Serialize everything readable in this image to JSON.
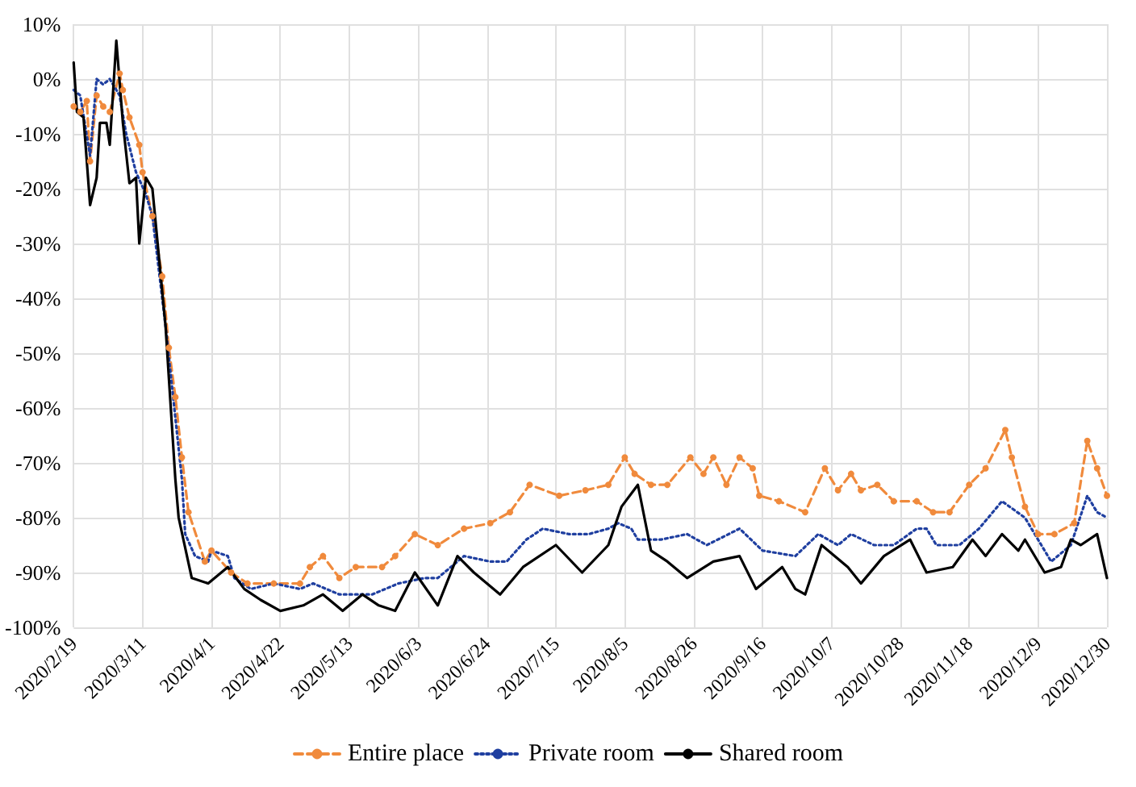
{
  "chart_data": {
    "type": "line",
    "xlim": [
      "2020-02-19",
      "2020-12-30"
    ],
    "xticks": [
      {
        "value": "2020-02-19",
        "label": "2020/2/19"
      },
      {
        "value": "2020-03-11",
        "label": "2020/3/11"
      },
      {
        "value": "2020-04-01",
        "label": "2020/4/1"
      },
      {
        "value": "2020-04-22",
        "label": "2020/4/22"
      },
      {
        "value": "2020-05-13",
        "label": "2020/5/13"
      },
      {
        "value": "2020-06-03",
        "label": "2020/6/3"
      },
      {
        "value": "2020-06-24",
        "label": "2020/6/24"
      },
      {
        "value": "2020-07-15",
        "label": "2020/7/15"
      },
      {
        "value": "2020-08-05",
        "label": "2020/8/5"
      },
      {
        "value": "2020-08-26",
        "label": "2020/8/26"
      },
      {
        "value": "2020-09-16",
        "label": "2020/9/16"
      },
      {
        "value": "2020-10-07",
        "label": "2020/10/7"
      },
      {
        "value": "2020-10-28",
        "label": "2020/10/28"
      },
      {
        "value": "2020-11-18",
        "label": "2020/11/18"
      },
      {
        "value": "2020-12-09",
        "label": "2020/12/9"
      },
      {
        "value": "2020-12-30",
        "label": "2020/12/30"
      }
    ],
    "ylim": [
      -100,
      10
    ],
    "yticks": [
      {
        "value": -100,
        "label": "-100%"
      },
      {
        "value": -90,
        "label": "-90%"
      },
      {
        "value": -80,
        "label": "-80%"
      },
      {
        "value": -70,
        "label": "-70%"
      },
      {
        "value": -60,
        "label": "-60%"
      },
      {
        "value": -50,
        "label": "-50%"
      },
      {
        "value": -40,
        "label": "-40%"
      },
      {
        "value": -30,
        "label": "-30%"
      },
      {
        "value": -20,
        "label": "-20%"
      },
      {
        "value": -10,
        "label": "-10%"
      },
      {
        "value": 0,
        "label": "0%"
      },
      {
        "value": 10,
        "label": "10%"
      }
    ],
    "grid": true,
    "legend": "bottom",
    "series": [
      {
        "name": "Entire place",
        "color": "#f08a3c",
        "line_style": "dashed",
        "marker": "circle",
        "x": [
          "2020-02-19",
          "2020-02-21",
          "2020-02-23",
          "2020-02-24",
          "2020-02-26",
          "2020-02-28",
          "2020-03-01",
          "2020-03-04",
          "2020-03-05",
          "2020-03-07",
          "2020-03-10",
          "2020-03-11",
          "2020-03-14",
          "2020-03-17",
          "2020-03-19",
          "2020-03-21",
          "2020-03-23",
          "2020-03-25",
          "2020-03-30",
          "2020-04-01",
          "2020-04-07",
          "2020-04-12",
          "2020-04-20",
          "2020-04-28",
          "2020-05-01",
          "2020-05-05",
          "2020-05-10",
          "2020-05-15",
          "2020-05-23",
          "2020-05-27",
          "2020-06-02",
          "2020-06-09",
          "2020-06-17",
          "2020-06-25",
          "2020-07-01",
          "2020-07-07",
          "2020-07-16",
          "2020-07-24",
          "2020-07-31",
          "2020-08-05",
          "2020-08-08",
          "2020-08-13",
          "2020-08-18",
          "2020-08-25",
          "2020-08-29",
          "2020-09-01",
          "2020-09-05",
          "2020-09-09",
          "2020-09-13",
          "2020-09-15",
          "2020-09-21",
          "2020-09-29",
          "2020-10-05",
          "2020-10-09",
          "2020-10-13",
          "2020-10-16",
          "2020-10-21",
          "2020-10-26",
          "2020-11-02",
          "2020-11-07",
          "2020-11-12",
          "2020-11-18",
          "2020-11-23",
          "2020-11-29",
          "2020-12-01",
          "2020-12-05",
          "2020-12-09",
          "2020-12-14",
          "2020-12-20",
          "2020-12-24",
          "2020-12-27",
          "2020-12-30"
        ],
        "values": [
          -5,
          -6,
          -4,
          -15,
          -3,
          -5,
          -6,
          1,
          -2,
          -7,
          -12,
          -17,
          -25,
          -36,
          -49,
          -58,
          -69,
          -79,
          -88,
          -86,
          -90,
          -92,
          -92,
          -92,
          -89,
          -87,
          -91,
          -89,
          -89,
          -87,
          -83,
          -85,
          -82,
          -81,
          -79,
          -74,
          -76,
          -75,
          -74,
          -69,
          -72,
          -74,
          -74,
          -69,
          -72,
          -69,
          -74,
          -69,
          -71,
          -76,
          -77,
          -79,
          -71,
          -75,
          -72,
          -75,
          -74,
          -77,
          -77,
          -79,
          -79,
          -74,
          -71,
          -64,
          -69,
          -78,
          -83,
          -83,
          -81,
          -66,
          -71,
          -76
        ]
      },
      {
        "name": "Private room",
        "color": "#1f3fa0",
        "line_style": "dotted",
        "marker": "none",
        "x": [
          "2020-02-19",
          "2020-02-21",
          "2020-02-24",
          "2020-02-26",
          "2020-02-28",
          "2020-03-01",
          "2020-03-04",
          "2020-03-06",
          "2020-03-09",
          "2020-03-12",
          "2020-03-14",
          "2020-03-18",
          "2020-03-23",
          "2020-03-24",
          "2020-03-27",
          "2020-03-31",
          "2020-04-01",
          "2020-04-06",
          "2020-04-08",
          "2020-04-13",
          "2020-04-20",
          "2020-04-28",
          "2020-05-02",
          "2020-05-10",
          "2020-05-20",
          "2020-05-28",
          "2020-06-05",
          "2020-06-09",
          "2020-06-17",
          "2020-06-25",
          "2020-06-30",
          "2020-07-06",
          "2020-07-11",
          "2020-07-19",
          "2020-07-25",
          "2020-07-31",
          "2020-08-03",
          "2020-08-07",
          "2020-08-09",
          "2020-08-16",
          "2020-08-24",
          "2020-08-30",
          "2020-09-09",
          "2020-09-16",
          "2020-09-26",
          "2020-10-03",
          "2020-10-09",
          "2020-10-13",
          "2020-10-20",
          "2020-10-26",
          "2020-11-02",
          "2020-11-05",
          "2020-11-08",
          "2020-11-15",
          "2020-11-21",
          "2020-11-28",
          "2020-12-05",
          "2020-12-11",
          "2020-12-13",
          "2020-12-19",
          "2020-12-24",
          "2020-12-27",
          "2020-12-30"
        ],
        "values": [
          -2,
          -3,
          -14,
          0,
          -1,
          0,
          -3,
          -10,
          -17,
          -21,
          -25,
          -45,
          -73,
          -83,
          -87,
          -88,
          -86,
          -87,
          -91,
          -93,
          -92,
          -93,
          -92,
          -94,
          -94,
          -92,
          -91,
          -91,
          -87,
          -88,
          -88,
          -84,
          -82,
          -83,
          -83,
          -82,
          -81,
          -82,
          -84,
          -84,
          -83,
          -85,
          -82,
          -86,
          -87,
          -83,
          -85,
          -83,
          -85,
          -85,
          -82,
          -82,
          -85,
          -85,
          -82,
          -77,
          -80,
          -86,
          -88,
          -85,
          -76,
          -79,
          -80
        ]
      },
      {
        "name": "Shared room",
        "color": "#000000",
        "line_style": "solid",
        "marker": "none",
        "x": [
          "2020-02-19",
          "2020-02-20",
          "2020-02-22",
          "2020-02-24",
          "2020-02-26",
          "2020-02-27",
          "2020-02-29",
          "2020-03-01",
          "2020-03-03",
          "2020-03-05",
          "2020-03-07",
          "2020-03-09",
          "2020-03-10",
          "2020-03-12",
          "2020-03-14",
          "2020-03-18",
          "2020-03-21",
          "2020-03-22",
          "2020-03-26",
          "2020-03-31",
          "2020-04-06",
          "2020-04-11",
          "2020-04-16",
          "2020-04-22",
          "2020-04-29",
          "2020-05-05",
          "2020-05-11",
          "2020-05-17",
          "2020-05-22",
          "2020-05-27",
          "2020-06-02",
          "2020-06-09",
          "2020-06-15",
          "2020-06-20",
          "2020-06-28",
          "2020-07-05",
          "2020-07-15",
          "2020-07-23",
          "2020-07-31",
          "2020-08-04",
          "2020-08-09",
          "2020-08-13",
          "2020-08-18",
          "2020-08-24",
          "2020-09-01",
          "2020-09-09",
          "2020-09-14",
          "2020-09-22",
          "2020-09-26",
          "2020-09-29",
          "2020-10-04",
          "2020-10-12",
          "2020-10-16",
          "2020-10-23",
          "2020-10-31",
          "2020-11-05",
          "2020-11-13",
          "2020-11-19",
          "2020-11-23",
          "2020-11-28",
          "2020-12-03",
          "2020-12-05",
          "2020-12-11",
          "2020-12-16",
          "2020-12-19",
          "2020-12-22",
          "2020-12-27",
          "2020-12-30"
        ],
        "values": [
          3,
          -6,
          -7,
          -23,
          -18,
          -8,
          -8,
          -12,
          7,
          -8,
          -19,
          -18,
          -30,
          -18,
          -20,
          -45,
          -73,
          -80,
          -91,
          -92,
          -89,
          -93,
          -95,
          -97,
          -96,
          -94,
          -97,
          -94,
          -96,
          -97,
          -90,
          -96,
          -87,
          -90,
          -94,
          -89,
          -85,
          -90,
          -85,
          -78,
          -74,
          -86,
          -88,
          -91,
          -88,
          -87,
          -93,
          -89,
          -93,
          -94,
          -85,
          -89,
          -92,
          -87,
          -84,
          -90,
          -89,
          -84,
          -87,
          -83,
          -86,
          -84,
          -90,
          -89,
          -84,
          -85,
          -83,
          -91
        ]
      }
    ]
  }
}
